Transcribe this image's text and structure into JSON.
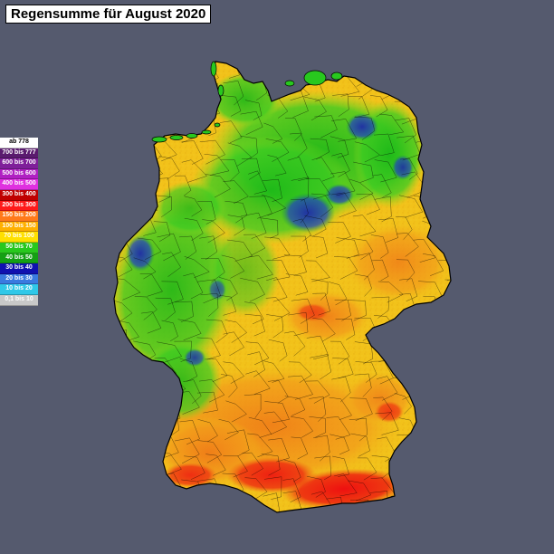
{
  "title": "Regensumme für August 2020",
  "legend": [
    {
      "label": "ab 778",
      "bg": "#ffffff",
      "fg": "#000000"
    },
    {
      "label": "700 bis 777",
      "bg": "#5a1a6e",
      "fg": "#ffffff"
    },
    {
      "label": "600 bis 700",
      "bg": "#7f1f9a",
      "fg": "#ffffff"
    },
    {
      "label": "500 bis 600",
      "bg": "#b01fc2",
      "fg": "#ffffff"
    },
    {
      "label": "400 bis 500",
      "bg": "#e030e0",
      "fg": "#ffffff"
    },
    {
      "label": "300 bis 400",
      "bg": "#c00000",
      "fg": "#ffffff"
    },
    {
      "label": "200 bis 300",
      "bg": "#ff1a1a",
      "fg": "#ffffff"
    },
    {
      "label": "150 bis 200",
      "bg": "#ff7a1a",
      "fg": "#ffffff"
    },
    {
      "label": "100 bis 150",
      "bg": "#ffb000",
      "fg": "#ffffff"
    },
    {
      "label": "70 bis 100",
      "bg": "#ffe000",
      "fg": "#ffffff"
    },
    {
      "label": "50 bis 70",
      "bg": "#28c81e",
      "fg": "#ffffff"
    },
    {
      "label": "40 bis 50",
      "bg": "#14a014",
      "fg": "#ffffff"
    },
    {
      "label": "30 bis 40",
      "bg": "#1010b0",
      "fg": "#ffffff"
    },
    {
      "label": "20 bis 30",
      "bg": "#3a7ae0",
      "fg": "#ffffff"
    },
    {
      "label": "10 bis 20",
      "bg": "#30c8e8",
      "fg": "#ffffff"
    },
    {
      "label": "0,1 bis 10",
      "bg": "#c8c8c8",
      "fg": "#ffffff"
    }
  ],
  "colors": {
    "background": "#555a6e",
    "high_rain_red": "#e81010",
    "orange": "#f08a1a",
    "yellow": "#f2c21a",
    "light_green": "#8fdc1e",
    "green": "#28c81e",
    "dark_green": "#0f9a14",
    "blue": "#1a2ab0",
    "border": "#000000"
  }
}
